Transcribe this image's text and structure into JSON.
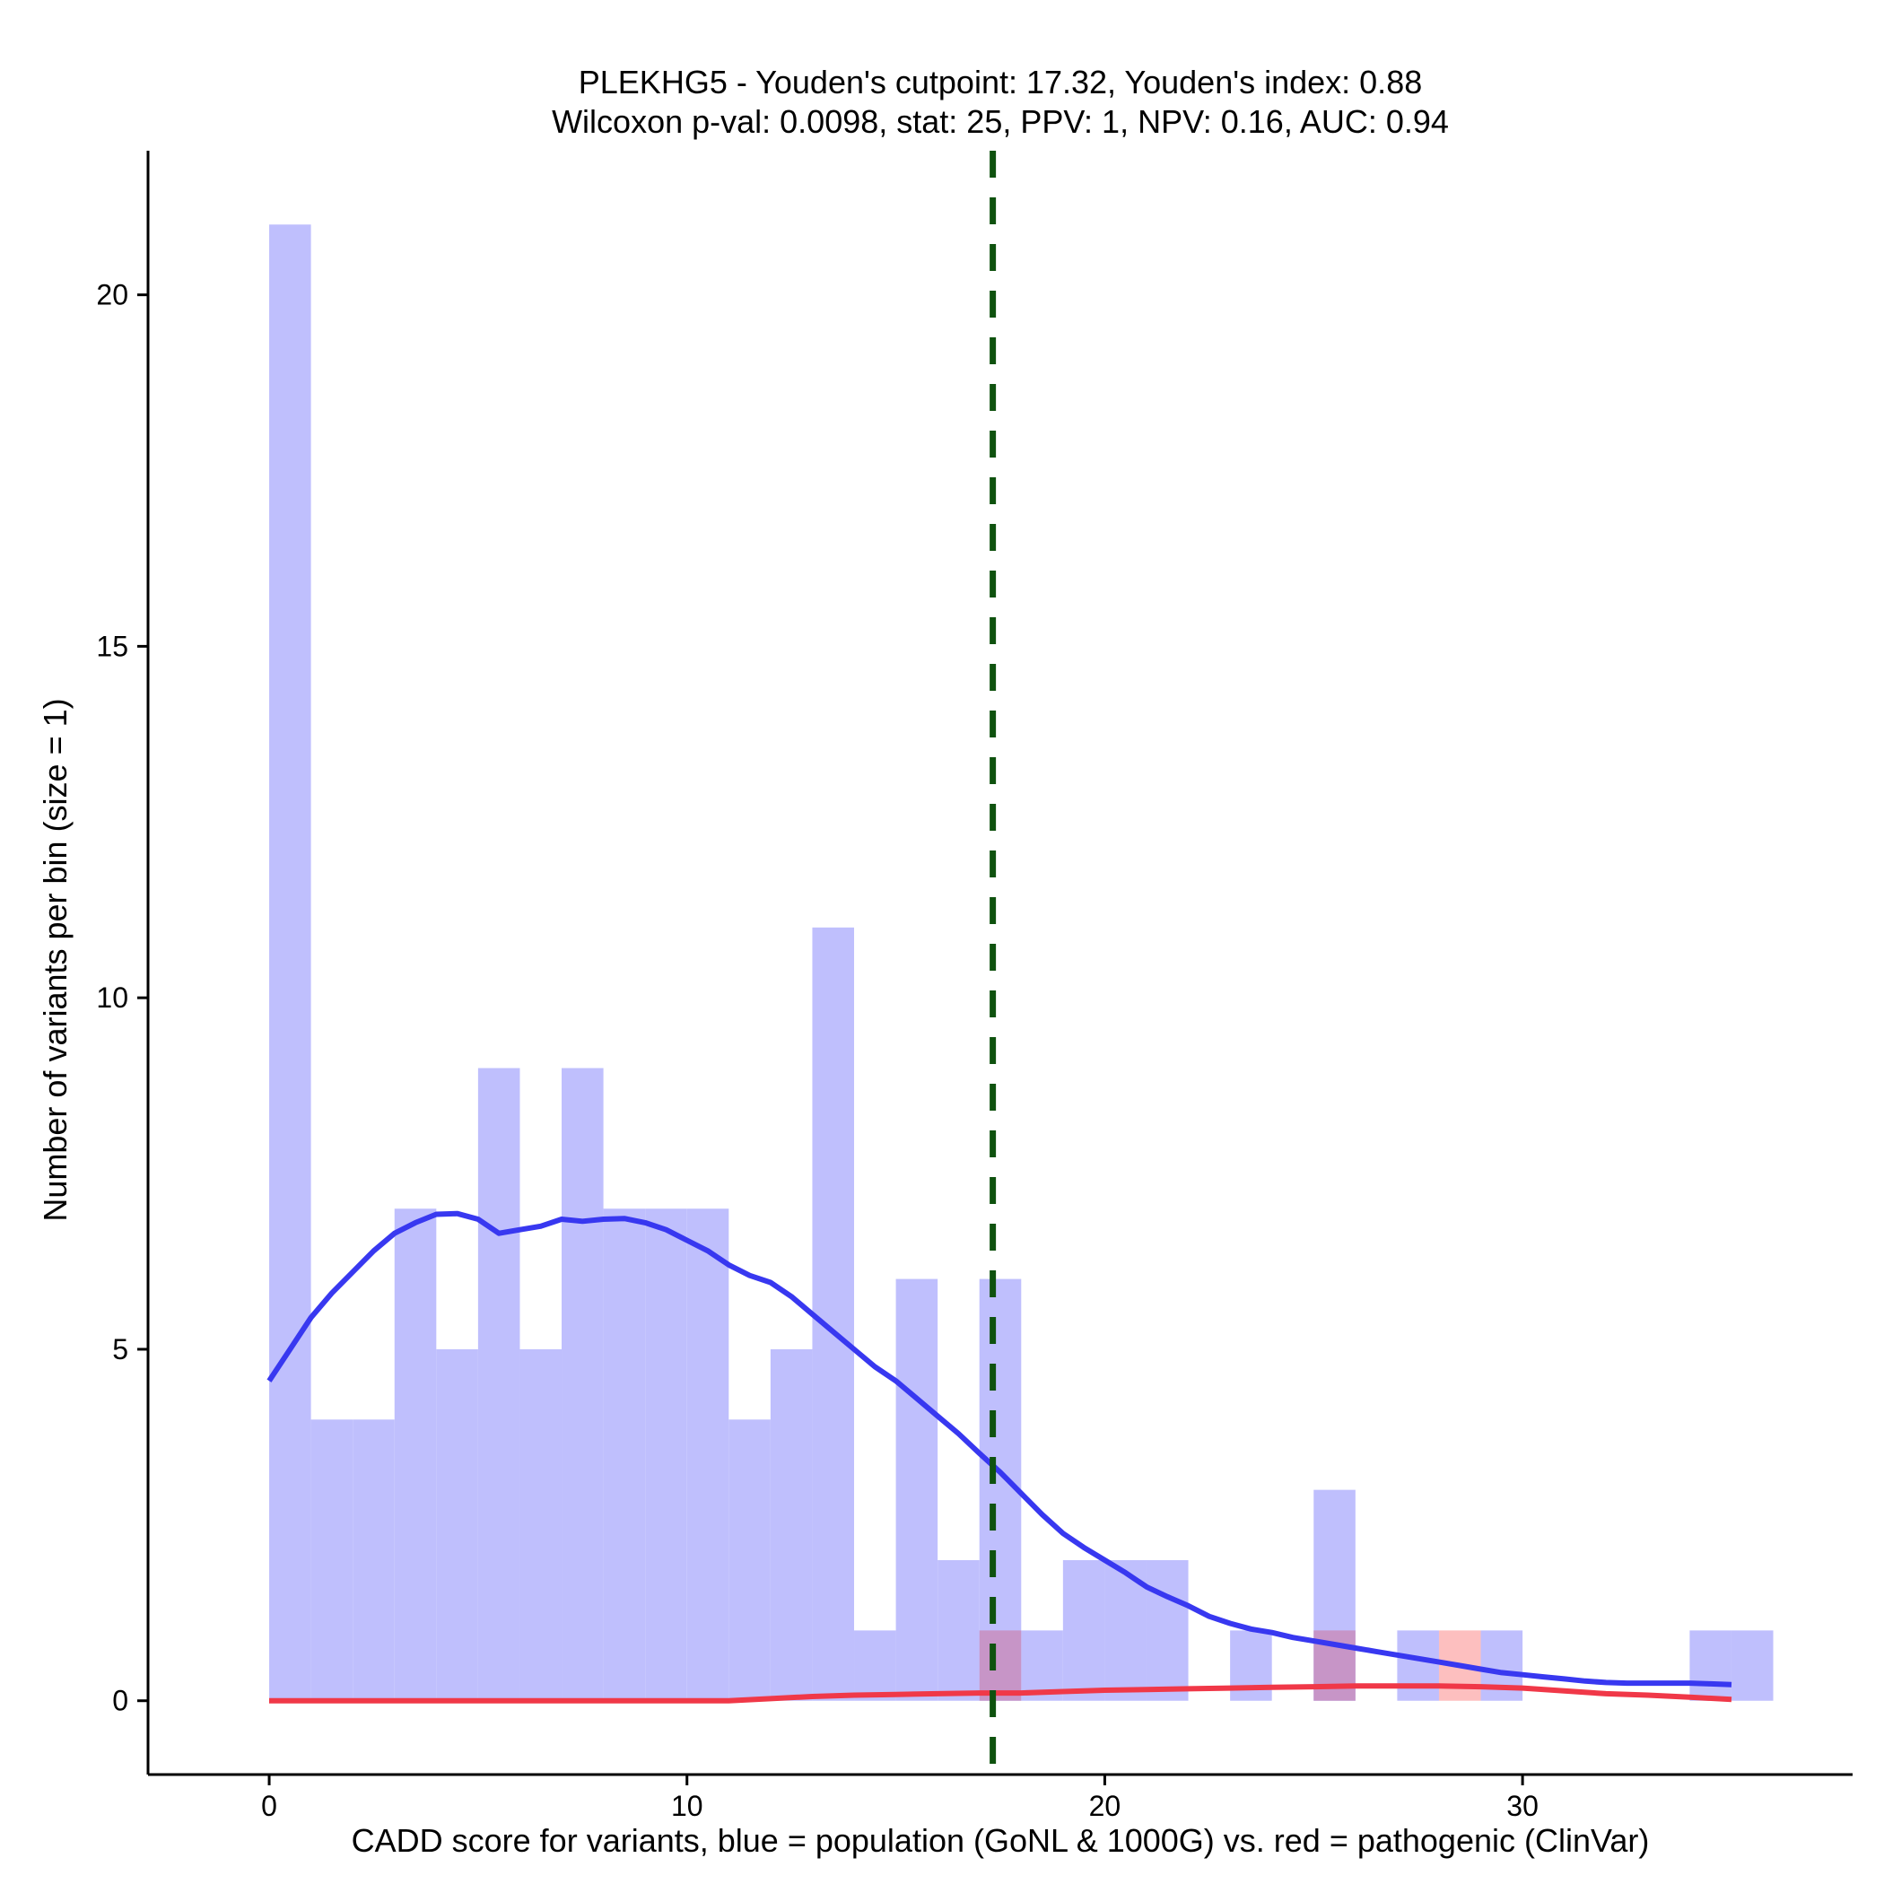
{
  "chart_data": {
    "type": "histogram",
    "title_line1": "PLEKHG5 - Youden's cutpoint: 17.32, Youden's index: 0.88",
    "title_line2": "Wilcoxon p-val: 0.0098, stat: 25, PPV: 1, NPV: 0.16, AUC: 0.94",
    "xlabel": "CADD score for variants, blue = population (GoNL & 1000G) vs. red = pathogenic (ClinVar)",
    "ylabel": "Number of variants per bin (size = 1)",
    "xlim": [
      -2.9,
      37.9
    ],
    "ylim": [
      -1.05,
      22.05
    ],
    "xticks": [
      0,
      10,
      20,
      30
    ],
    "yticks": [
      0,
      5,
      10,
      15,
      20
    ],
    "bin_size": 1,
    "cutpoint": 17.32,
    "colors": {
      "population_bar": "#bfbffd",
      "pathogenic_bar": "#fdbfbf",
      "overlap_bar": "#c795c7",
      "population_line": "#3838f0",
      "pathogenic_line": "#f03848",
      "cutpoint_line": "#0f520f"
    },
    "series": [
      {
        "name": "population (GoNL & 1000G)",
        "bins": [
          {
            "x": 0,
            "count": 21
          },
          {
            "x": 1,
            "count": 4
          },
          {
            "x": 2,
            "count": 4
          },
          {
            "x": 3,
            "count": 7
          },
          {
            "x": 4,
            "count": 5
          },
          {
            "x": 5,
            "count": 9
          },
          {
            "x": 6,
            "count": 5
          },
          {
            "x": 7,
            "count": 9
          },
          {
            "x": 8,
            "count": 7
          },
          {
            "x": 9,
            "count": 7
          },
          {
            "x": 10,
            "count": 7
          },
          {
            "x": 11,
            "count": 4
          },
          {
            "x": 12,
            "count": 5
          },
          {
            "x": 13,
            "count": 11
          },
          {
            "x": 14,
            "count": 1
          },
          {
            "x": 15,
            "count": 6
          },
          {
            "x": 16,
            "count": 2
          },
          {
            "x": 17,
            "count": 6
          },
          {
            "x": 18,
            "count": 1
          },
          {
            "x": 19,
            "count": 2
          },
          {
            "x": 20,
            "count": 2
          },
          {
            "x": 21,
            "count": 2
          },
          {
            "x": 23,
            "count": 1
          },
          {
            "x": 25,
            "count": 3
          },
          {
            "x": 27,
            "count": 1
          },
          {
            "x": 29,
            "count": 1
          },
          {
            "x": 34,
            "count": 1
          },
          {
            "x": 35,
            "count": 1
          }
        ],
        "density_curve": [
          [
            0,
            4.55
          ],
          [
            0.5,
            5.0
          ],
          [
            1,
            5.45
          ],
          [
            1.5,
            5.8
          ],
          [
            2,
            6.1
          ],
          [
            2.5,
            6.4
          ],
          [
            3,
            6.65
          ],
          [
            3.5,
            6.8
          ],
          [
            4,
            6.92
          ],
          [
            4.5,
            6.93
          ],
          [
            5,
            6.85
          ],
          [
            5.5,
            6.65
          ],
          [
            6,
            6.7
          ],
          [
            6.5,
            6.75
          ],
          [
            7,
            6.85
          ],
          [
            7.5,
            6.82
          ],
          [
            8,
            6.85
          ],
          [
            8.5,
            6.86
          ],
          [
            9,
            6.8
          ],
          [
            9.5,
            6.7
          ],
          [
            10,
            6.55
          ],
          [
            10.5,
            6.4
          ],
          [
            11,
            6.2
          ],
          [
            11.5,
            6.05
          ],
          [
            12,
            5.95
          ],
          [
            12.5,
            5.75
          ],
          [
            13,
            5.5
          ],
          [
            13.5,
            5.25
          ],
          [
            14,
            5.0
          ],
          [
            14.5,
            4.75
          ],
          [
            15,
            4.55
          ],
          [
            15.5,
            4.3
          ],
          [
            16,
            4.05
          ],
          [
            16.5,
            3.8
          ],
          [
            17,
            3.52
          ],
          [
            17.5,
            3.25
          ],
          [
            18,
            2.95
          ],
          [
            18.5,
            2.65
          ],
          [
            19,
            2.38
          ],
          [
            19.5,
            2.18
          ],
          [
            20,
            2.0
          ],
          [
            20.5,
            1.82
          ],
          [
            21,
            1.62
          ],
          [
            21.5,
            1.48
          ],
          [
            22,
            1.35
          ],
          [
            22.5,
            1.2
          ],
          [
            23,
            1.1
          ],
          [
            23.5,
            1.02
          ],
          [
            24,
            0.97
          ],
          [
            24.5,
            0.9
          ],
          [
            25,
            0.85
          ],
          [
            25.5,
            0.8
          ],
          [
            26,
            0.75
          ],
          [
            26.5,
            0.7
          ],
          [
            27,
            0.65
          ],
          [
            27.5,
            0.6
          ],
          [
            28,
            0.55
          ],
          [
            28.5,
            0.5
          ],
          [
            29,
            0.45
          ],
          [
            29.5,
            0.4
          ],
          [
            30,
            0.37
          ],
          [
            30.5,
            0.34
          ],
          [
            31,
            0.31
          ],
          [
            31.5,
            0.28
          ],
          [
            32,
            0.26
          ],
          [
            32.5,
            0.25
          ],
          [
            33,
            0.25
          ],
          [
            33.5,
            0.25
          ],
          [
            34,
            0.25
          ],
          [
            34.5,
            0.24
          ],
          [
            35,
            0.23
          ]
        ]
      },
      {
        "name": "pathogenic (ClinVar)",
        "bins": [
          {
            "x": 17,
            "count": 1
          },
          {
            "x": 25,
            "count": 1
          },
          {
            "x": 28,
            "count": 1
          }
        ],
        "density_curve": [
          [
            0,
            0.0
          ],
          [
            5,
            0.0
          ],
          [
            10,
            0.0
          ],
          [
            11,
            0.0
          ],
          [
            12,
            0.03
          ],
          [
            13,
            0.06
          ],
          [
            14,
            0.08
          ],
          [
            15,
            0.09
          ],
          [
            16,
            0.1
          ],
          [
            17,
            0.11
          ],
          [
            18,
            0.11
          ],
          [
            19,
            0.13
          ],
          [
            20,
            0.15
          ],
          [
            21,
            0.16
          ],
          [
            22,
            0.17
          ],
          [
            23,
            0.18
          ],
          [
            24,
            0.19
          ],
          [
            25,
            0.2
          ],
          [
            26,
            0.21
          ],
          [
            27,
            0.21
          ],
          [
            28,
            0.21
          ],
          [
            29,
            0.2
          ],
          [
            30,
            0.18
          ],
          [
            31,
            0.14
          ],
          [
            32,
            0.1
          ],
          [
            33,
            0.08
          ],
          [
            34,
            0.05
          ],
          [
            35,
            0.02
          ]
        ]
      }
    ]
  }
}
